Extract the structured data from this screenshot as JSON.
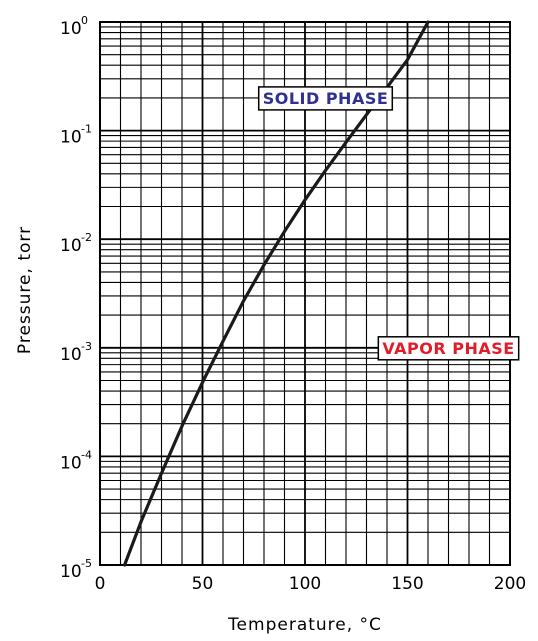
{
  "chart_data": {
    "type": "line",
    "x_label": "Temperature, °C",
    "y_label": "Pressure, torr",
    "x_range": [
      0,
      200
    ],
    "y_range": [
      1e-05,
      1
    ],
    "y_scale": "log",
    "grid": true,
    "x_ticks": [
      "0",
      "50",
      "100",
      "150",
      "200"
    ],
    "y_ticks": [
      {
        "base": "10",
        "exp": "-5",
        "value": 1e-05
      },
      {
        "base": "10",
        "exp": "-4",
        "value": 0.0001
      },
      {
        "base": "10",
        "exp": "-3",
        "value": 0.001
      },
      {
        "base": "10",
        "exp": "-2",
        "value": 0.01
      },
      {
        "base": "10",
        "exp": "-1",
        "value": 0.1
      },
      {
        "base": "10",
        "exp": "0",
        "value": 1
      }
    ],
    "series": [
      {
        "color": "#1a1a1a",
        "x": [
          12,
          20,
          30,
          40,
          50,
          60,
          70,
          80,
          90,
          100,
          110,
          120,
          130,
          140,
          150,
          160
        ],
        "y": [
          1e-05,
          2.5e-05,
          7e-05,
          0.00019,
          0.00048,
          0.00115,
          0.0027,
          0.0058,
          0.0118,
          0.023,
          0.043,
          0.078,
          0.14,
          0.25,
          0.45,
          1.0
        ]
      }
    ],
    "annotations": [
      {
        "text": "SOLID PHASE",
        "color": "#2e3192",
        "x": 110,
        "y": 0.2
      },
      {
        "text": "VAPOR PHASE",
        "color": "#e11d2a",
        "x": 170,
        "y": 0.001
      }
    ]
  }
}
